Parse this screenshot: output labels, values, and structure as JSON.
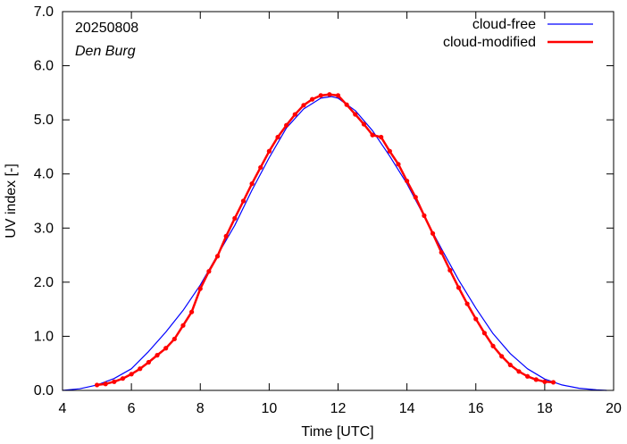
{
  "chart_data": {
    "type": "line",
    "date_label": "20250808",
    "location_label": "Den Burg",
    "xlabel": "Time  [UTC]",
    "ylabel": "UV index  [-]",
    "xlim": [
      4,
      20
    ],
    "ylim": [
      0,
      7
    ],
    "xticks": [
      4,
      6,
      8,
      10,
      12,
      14,
      16,
      18,
      20
    ],
    "yticks": [
      0,
      1,
      2,
      3,
      4,
      5,
      6,
      7
    ],
    "ytick_labels": [
      "0.0",
      "1.0",
      "2.0",
      "3.0",
      "4.0",
      "5.0",
      "6.0",
      "7.0"
    ],
    "legend_position": "top-right",
    "grid": false,
    "series": [
      {
        "name": "cloud-free",
        "color": "#0000ff",
        "markers": false,
        "x": [
          4.0,
          4.5,
          5.0,
          5.5,
          6.0,
          6.5,
          7.0,
          7.5,
          8.0,
          8.5,
          9.0,
          9.5,
          10.0,
          10.5,
          11.0,
          11.5,
          11.8,
          12.0,
          12.5,
          13.0,
          13.5,
          14.0,
          14.5,
          15.0,
          15.5,
          16.0,
          16.5,
          17.0,
          17.5,
          18.0,
          18.5,
          19.0,
          19.5,
          19.8
        ],
        "y": [
          0.0,
          0.03,
          0.1,
          0.22,
          0.4,
          0.72,
          1.08,
          1.48,
          1.95,
          2.5,
          3.05,
          3.7,
          4.3,
          4.85,
          5.2,
          5.4,
          5.43,
          5.4,
          5.17,
          4.8,
          4.33,
          3.82,
          3.22,
          2.62,
          2.04,
          1.52,
          1.05,
          0.68,
          0.4,
          0.21,
          0.1,
          0.04,
          0.01,
          0.0
        ]
      },
      {
        "name": "cloud-modified",
        "color": "#ff0000",
        "markers": true,
        "x": [
          5.0,
          5.25,
          5.5,
          5.75,
          6.0,
          6.25,
          6.5,
          6.75,
          7.0,
          7.25,
          7.5,
          7.75,
          8.0,
          8.25,
          8.5,
          8.75,
          9.0,
          9.25,
          9.5,
          9.75,
          10.0,
          10.25,
          10.5,
          10.75,
          11.0,
          11.25,
          11.5,
          11.75,
          12.0,
          12.25,
          12.5,
          12.75,
          13.0,
          13.25,
          13.5,
          13.75,
          14.0,
          14.25,
          14.5,
          14.75,
          15.0,
          15.25,
          15.5,
          15.75,
          16.0,
          16.25,
          16.5,
          16.75,
          17.0,
          17.25,
          17.5,
          17.75,
          18.0,
          18.25
        ],
        "y": [
          0.1,
          0.12,
          0.16,
          0.22,
          0.3,
          0.4,
          0.52,
          0.65,
          0.78,
          0.95,
          1.2,
          1.45,
          1.88,
          2.2,
          2.48,
          2.85,
          3.18,
          3.5,
          3.82,
          4.12,
          4.42,
          4.68,
          4.9,
          5.1,
          5.27,
          5.38,
          5.45,
          5.47,
          5.45,
          5.28,
          5.1,
          4.92,
          4.72,
          4.68,
          4.42,
          4.18,
          3.87,
          3.57,
          3.23,
          2.9,
          2.55,
          2.22,
          1.9,
          1.6,
          1.32,
          1.06,
          0.82,
          0.63,
          0.47,
          0.35,
          0.26,
          0.2,
          0.16,
          0.15
        ]
      }
    ]
  }
}
